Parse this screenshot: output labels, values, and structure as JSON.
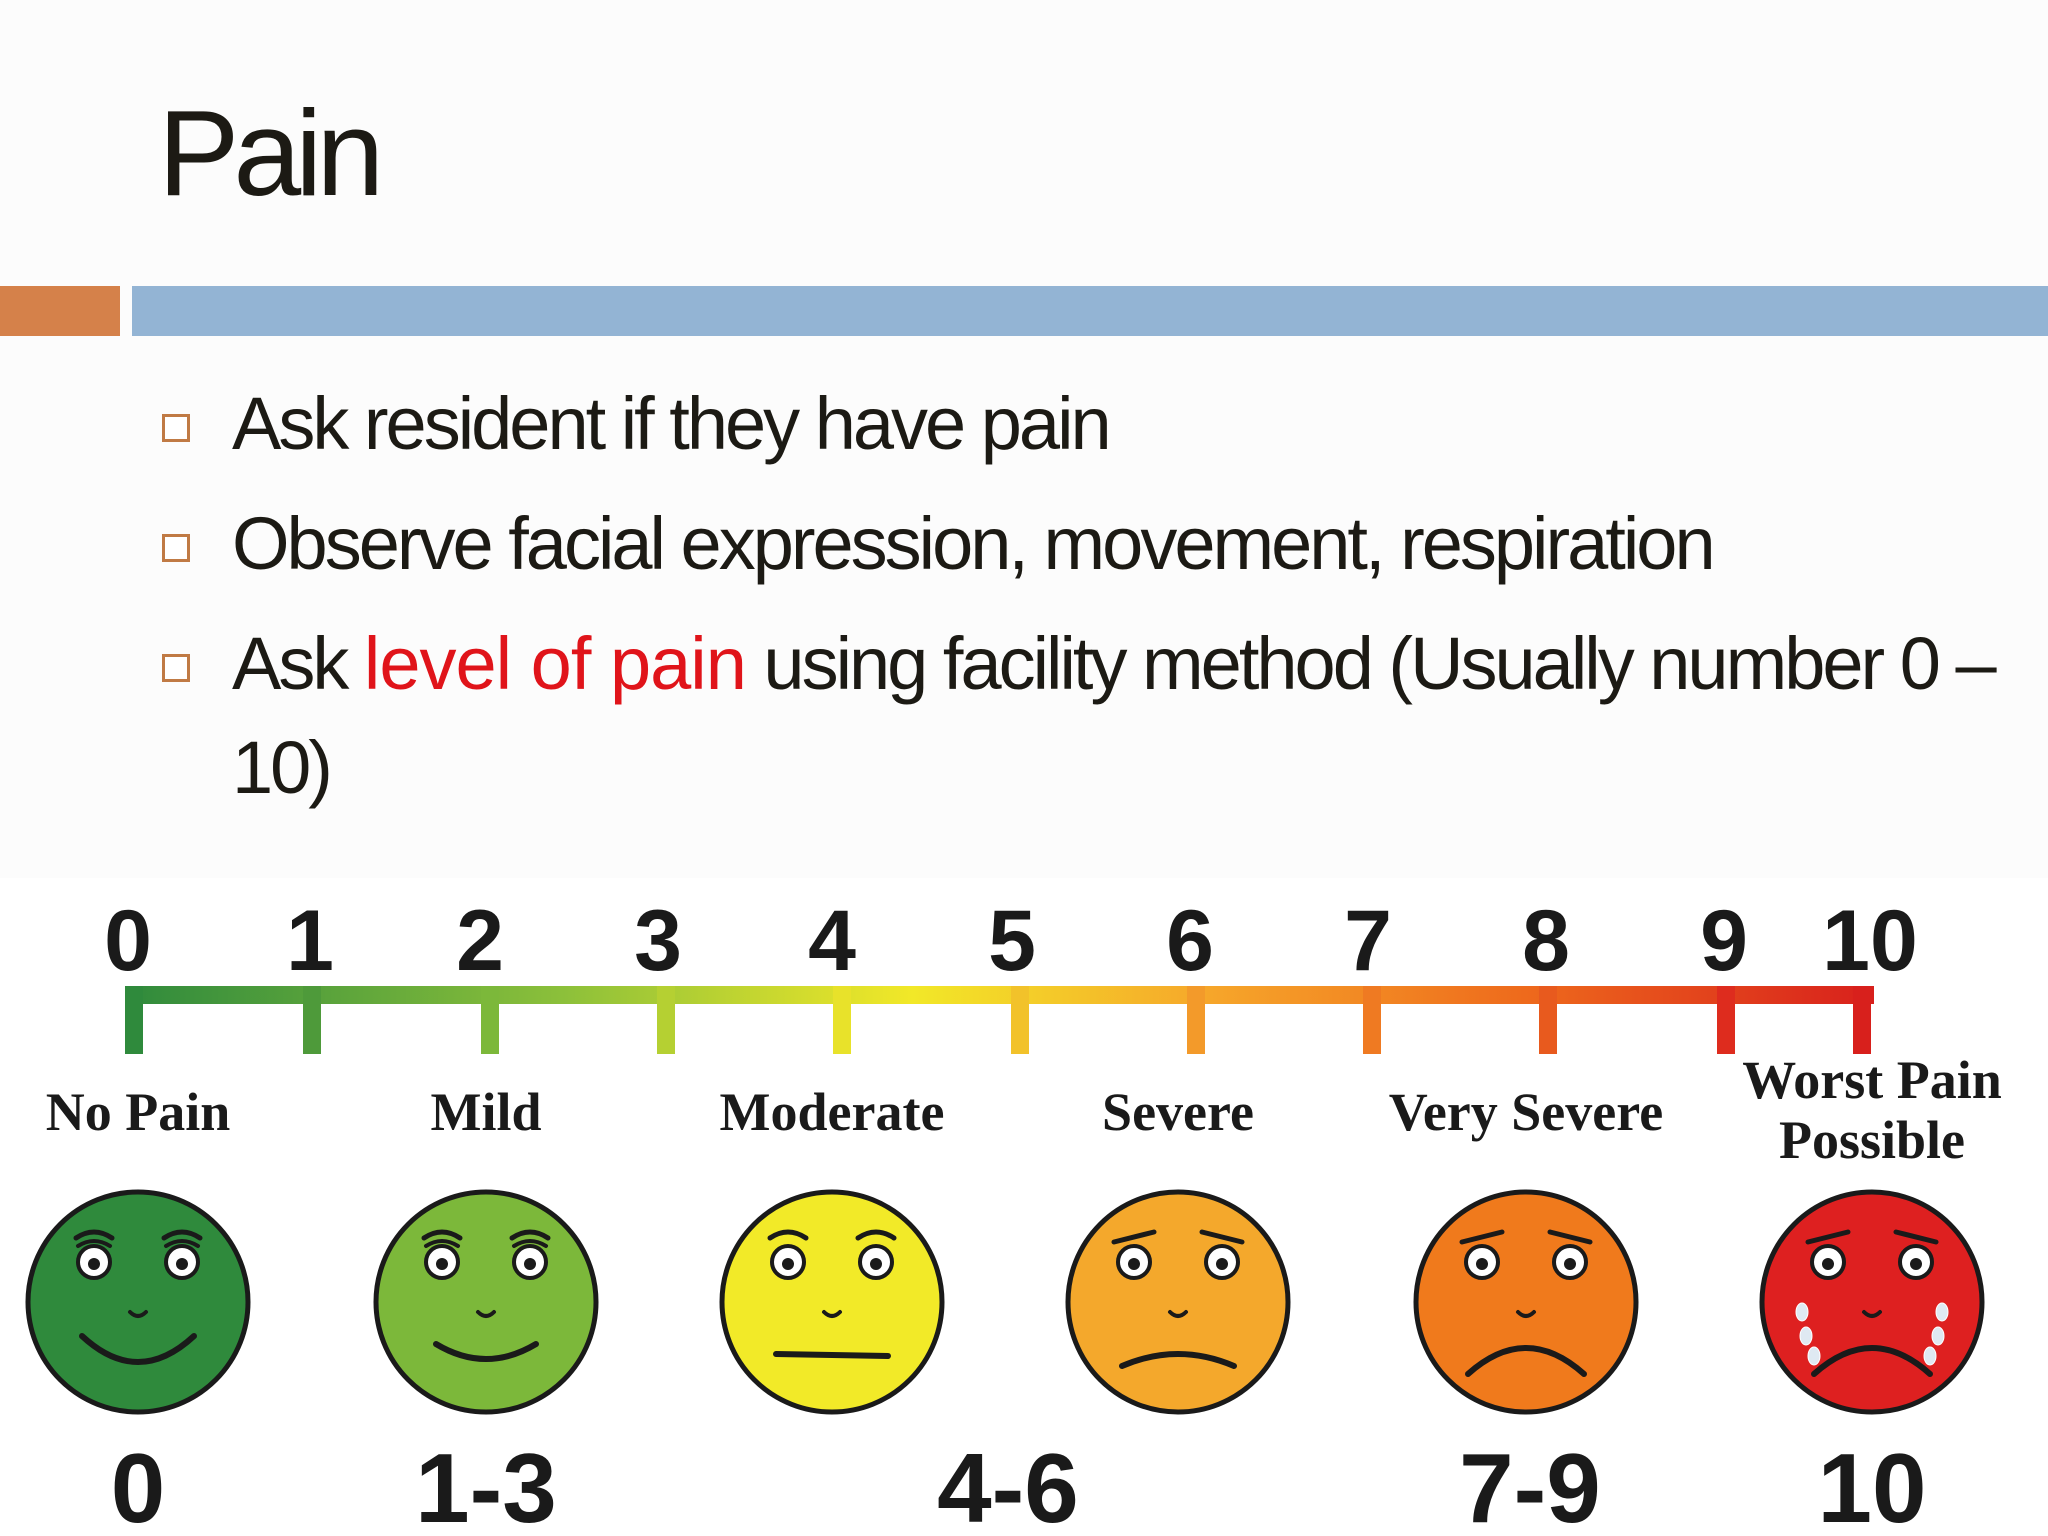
{
  "slide": {
    "title": "Pain",
    "bullets": [
      {
        "parts": [
          {
            "text": "Ask resident if they have pain",
            "highlight": false
          }
        ]
      },
      {
        "parts": [
          {
            "text": "Observe facial expression, movement, respiration",
            "highlight": false
          }
        ]
      },
      {
        "parts": [
          {
            "text": "Ask ",
            "highlight": false
          },
          {
            "text": "level of pain",
            "highlight": true
          },
          {
            "text": " using facility method (Usually number 0 – 10)",
            "highlight": false
          }
        ]
      }
    ],
    "colors": {
      "accent_orange": "#d5814a",
      "accent_blue": "#93b4d4",
      "highlight_red": "#e0141a"
    }
  },
  "pain_scale": {
    "numbers": [
      "0",
      "1",
      "2",
      "3",
      "4",
      "5",
      "6",
      "7",
      "8",
      "9",
      "10"
    ],
    "categories": [
      {
        "label": [
          "No Pain"
        ],
        "range": "0",
        "color": "#2f8a3c",
        "mood": "smile"
      },
      {
        "label": [
          "Mild"
        ],
        "range": "1-3",
        "color": "#7cb83a",
        "mood": "smile-small"
      },
      {
        "label": [
          "Moderate"
        ],
        "range": "4-6",
        "color": "#f2ea28",
        "mood": "neutral"
      },
      {
        "label": [
          "Severe"
        ],
        "range": "",
        "color": "#f4a82c",
        "mood": "frown-small"
      },
      {
        "label": [
          "Very Severe"
        ],
        "range": "7-9",
        "color": "#f07a1c",
        "mood": "frown"
      },
      {
        "label": [
          "Worst Pain",
          "Possible"
        ],
        "range": "10",
        "color": "#de2020",
        "mood": "cry"
      }
    ]
  }
}
